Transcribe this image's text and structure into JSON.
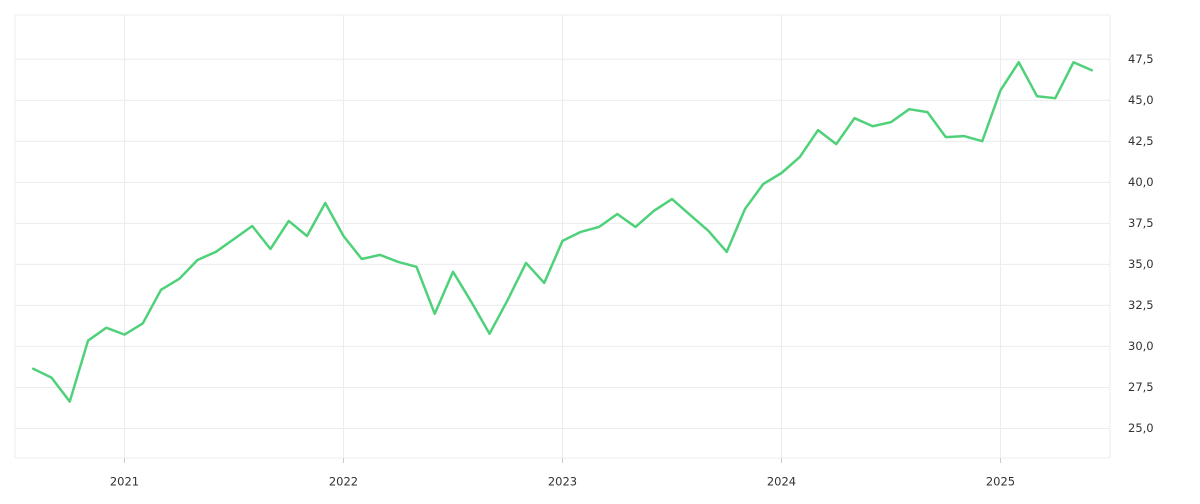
{
  "chart_data": {
    "type": "line",
    "categories": [
      null,
      null,
      null,
      null,
      null,
      "2021",
      null,
      null,
      null,
      null,
      null,
      null,
      null,
      null,
      null,
      null,
      null,
      "2022",
      null,
      null,
      null,
      null,
      null,
      null,
      null,
      null,
      null,
      null,
      null,
      "2023",
      null,
      null,
      null,
      null,
      null,
      null,
      null,
      null,
      null,
      null,
      null,
      "2024",
      null,
      null,
      null,
      null,
      null,
      null,
      null,
      null,
      null,
      null,
      null,
      "2025",
      null,
      null,
      null,
      null,
      null
    ],
    "series": [
      {
        "color": "#4fd17a",
        "values": [
          28.64,
          28.1,
          26.64,
          30.35,
          31.14,
          30.72,
          31.4,
          33.45,
          34.12,
          35.27,
          35.76,
          36.55,
          37.34,
          35.94,
          37.65,
          36.73,
          38.74,
          36.73,
          35.33,
          35.58,
          35.15,
          34.85,
          31.99,
          34.55,
          32.72,
          30.77,
          32.84,
          35.09,
          33.87,
          36.43,
          36.98,
          37.28,
          38.07,
          37.28,
          38.26,
          38.98,
          38.01,
          37.04,
          35.76,
          38.38,
          39.9,
          40.57,
          41.54,
          43.18,
          42.33,
          43.91,
          43.42,
          43.67,
          44.46,
          44.28,
          42.76,
          42.82,
          42.51,
          45.61,
          47.32,
          45.25,
          45.13,
          47.32,
          46.83
        ]
      }
    ],
    "ylim": [
      23.2,
      50.2
    ],
    "yticks": [
      {
        "value": 25,
        "label": "25,0"
      },
      {
        "value": 27.5,
        "label": "27,5"
      },
      {
        "value": 30,
        "label": "30,0"
      },
      {
        "value": 32.5,
        "label": "32,5"
      },
      {
        "value": 35,
        "label": "35,0"
      },
      {
        "value": 37.5,
        "label": "37,5"
      },
      {
        "value": 40,
        "label": "40,0"
      },
      {
        "value": 42.5,
        "label": "42,5"
      },
      {
        "value": 45,
        "label": "45,0"
      },
      {
        "value": 47.5,
        "label": "47,5"
      }
    ],
    "grid": true,
    "y_axis_side": "right"
  }
}
